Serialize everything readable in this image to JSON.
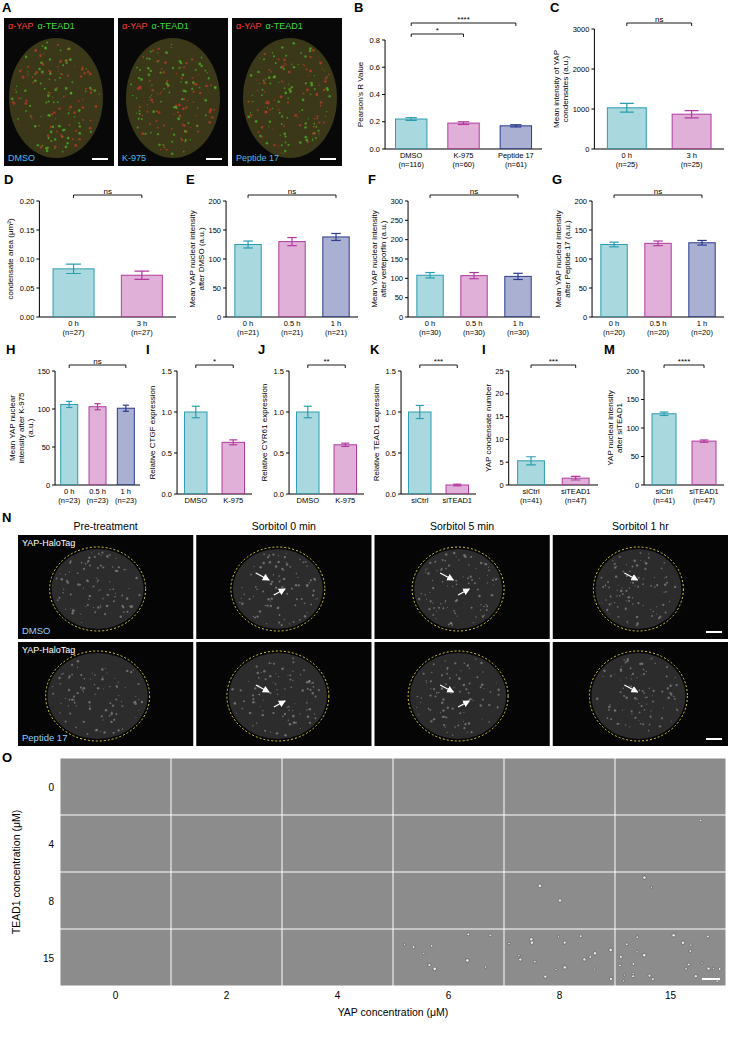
{
  "chart_data": [
    {
      "panel": "B",
      "type": "bar",
      "y_label": "Pearson's R Value",
      "categories": [
        "DMSO",
        "K-975",
        "Peptide 17"
      ],
      "n_labels": [
        "(n=116)",
        "(n=60)",
        "(n=61)"
      ],
      "values": [
        0.22,
        0.19,
        0.17
      ],
      "errors": [
        0.01,
        0.01,
        0.008
      ],
      "colors": [
        "#2a9db0",
        "#b23a9f",
        "#2b3a8f"
      ],
      "ylim": [
        0,
        0.8
      ],
      "yticks": [
        {
          "value": 0,
          "label": "0.0"
        },
        {
          "value": 0.2,
          "label": "0.2"
        },
        {
          "value": 0.4,
          "label": "0.4"
        },
        {
          "value": 0.6,
          "label": "0.6"
        },
        {
          "value": 0.8,
          "label": "0.8"
        }
      ],
      "comparisons": [
        {
          "from": 0,
          "to": 1,
          "label": "*"
        },
        {
          "from": 0,
          "to": 2,
          "label": "****"
        }
      ]
    },
    {
      "panel": "C",
      "type": "bar",
      "y_label": "Mean intensity of YAP condensates (a.u.)",
      "categories": [
        "0 h",
        "3 h"
      ],
      "n_labels": [
        "(n=25)",
        "(n=25)"
      ],
      "values": [
        1030,
        870
      ],
      "errors": [
        110,
        90
      ],
      "colors": [
        "#2a9db0",
        "#b23a9f"
      ],
      "ylim": [
        0,
        3000
      ],
      "yticks": [
        0,
        1000,
        2000,
        3000
      ],
      "comparisons": [
        {
          "from": 0,
          "to": 1,
          "label": "ns"
        }
      ]
    },
    {
      "panel": "D",
      "type": "bar",
      "y_label": "condensate area (μm²)",
      "categories": [
        "0 h",
        "3 h"
      ],
      "n_labels": [
        "(n=27)",
        "(n=27)"
      ],
      "values": [
        0.083,
        0.072
      ],
      "errors": [
        0.008,
        0.007
      ],
      "colors": [
        "#2a9db0",
        "#b23a9f"
      ],
      "ylim": [
        0,
        0.2
      ],
      "yticks": [
        {
          "value": 0,
          "label": "0.00"
        },
        {
          "value": 0.05,
          "label": "0.05"
        },
        {
          "value": 0.1,
          "label": "0.10"
        },
        {
          "value": 0.15,
          "label": "0.15"
        },
        {
          "value": 0.2,
          "label": "0.20"
        }
      ],
      "comparisons": [
        {
          "from": 0,
          "to": 1,
          "label": "ns"
        }
      ]
    },
    {
      "panel": "E",
      "type": "bar",
      "y_label": "Mean YAP nuclear intensity after DMSO (a.u.)",
      "categories": [
        "0 h",
        "0.5 h",
        "1 h"
      ],
      "n_labels": [
        "(n=21)",
        "(n=21)",
        "(n=21)"
      ],
      "values": [
        125,
        130,
        138
      ],
      "errors": [
        6,
        7,
        6
      ],
      "colors": [
        "#2a9db0",
        "#b23a9f",
        "#2b3a8f"
      ],
      "ylim": [
        0,
        200
      ],
      "yticks": [
        0,
        50,
        100,
        150,
        200
      ],
      "comparisons": [
        {
          "from": 0,
          "to": 2,
          "label": "ns"
        }
      ]
    },
    {
      "panel": "F",
      "type": "bar",
      "y_label": "Mean YAP nuclear intensity after verteporfin (a.u.)",
      "categories": [
        "0 h",
        "0.5 h",
        "1 h"
      ],
      "n_labels": [
        "(n=30)",
        "(n=30)",
        "(n=30)"
      ],
      "values": [
        108,
        107,
        105
      ],
      "errors": [
        7,
        8,
        8
      ],
      "colors": [
        "#2a9db0",
        "#b23a9f",
        "#2b3a8f"
      ],
      "ylim": [
        0,
        300
      ],
      "yticks": [
        0,
        50,
        100,
        150,
        200,
        250,
        300
      ],
      "comparisons": [
        {
          "from": 0,
          "to": 2,
          "label": "ns"
        }
      ]
    },
    {
      "panel": "G",
      "type": "bar",
      "y_label": "Mean YAP nuclear intensity after Peptide 17 (a.u.)",
      "categories": [
        "0 h",
        "0.5 h",
        "1 h"
      ],
      "n_labels": [
        "(n=20)",
        "(n=20)",
        "(n=20)"
      ],
      "values": [
        125,
        127,
        128
      ],
      "errors": [
        4,
        4,
        4
      ],
      "colors": [
        "#2a9db0",
        "#b23a9f",
        "#2b3a8f"
      ],
      "ylim": [
        0,
        200
      ],
      "yticks": [
        0,
        50,
        100,
        150,
        200
      ],
      "comparisons": [
        {
          "from": 0,
          "to": 2,
          "label": "ns"
        }
      ]
    },
    {
      "panel": "H",
      "type": "bar",
      "y_label": "Mean YAP nuclear intensity after K-975 (a.u.)",
      "categories": [
        "0 h",
        "0.5 h",
        "1 h"
      ],
      "n_labels": [
        "(n=23)",
        "(n=23)",
        "(n=23)"
      ],
      "values": [
        106,
        103,
        101
      ],
      "errors": [
        4,
        4,
        4
      ],
      "colors": [
        "#2a9db0",
        "#b23a9f",
        "#2b3a8f"
      ],
      "ylim": [
        0,
        150
      ],
      "yticks": [
        0,
        50,
        100,
        150
      ],
      "comparisons": [
        {
          "from": 0,
          "to": 2,
          "label": "ns"
        }
      ]
    },
    {
      "panel": "I",
      "type": "bar",
      "y_label": "Relative CTGF expression",
      "categories": [
        "DMSO",
        "K-975"
      ],
      "values": [
        1.0,
        0.63
      ],
      "errors": [
        0.07,
        0.03
      ],
      "colors": [
        "#2a9db0",
        "#b23a9f"
      ],
      "ylim": [
        0,
        1.5
      ],
      "yticks": [
        {
          "value": 0,
          "label": "0.0"
        },
        {
          "value": 0.5,
          "label": "0.5"
        },
        {
          "value": 1,
          "label": "1.0"
        },
        {
          "value": 1.5,
          "label": "1.5"
        }
      ],
      "comparisons": [
        {
          "from": 0,
          "to": 1,
          "label": "*"
        }
      ]
    },
    {
      "panel": "J",
      "type": "bar",
      "y_label": "Relative CYR61 expression",
      "categories": [
        "DMSO",
        "K-975"
      ],
      "values": [
        1.0,
        0.6
      ],
      "errors": [
        0.07,
        0.02
      ],
      "colors": [
        "#2a9db0",
        "#b23a9f"
      ],
      "ylim": [
        0,
        1.5
      ],
      "yticks": [
        {
          "value": 0,
          "label": "0.0"
        },
        {
          "value": 0.5,
          "label": "0.5"
        },
        {
          "value": 1,
          "label": "1.0"
        },
        {
          "value": 1.5,
          "label": "1.5"
        }
      ],
      "comparisons": [
        {
          "from": 0,
          "to": 1,
          "label": "**"
        }
      ]
    },
    {
      "panel": "K",
      "type": "bar",
      "y_label": "Relative TEAD1 expression",
      "categories": [
        "siCtrl",
        "siTEAD1"
      ],
      "values": [
        1.0,
        0.11
      ],
      "errors": [
        0.08,
        0.01
      ],
      "colors": [
        "#2a9db0",
        "#b23a9f"
      ],
      "ylim": [
        0,
        1.5
      ],
      "yticks": [
        {
          "value": 0,
          "label": "0.0"
        },
        {
          "value": 0.5,
          "label": "0.5"
        },
        {
          "value": 1,
          "label": "1.0"
        },
        {
          "value": 1.5,
          "label": "1.5"
        }
      ],
      "comparisons": [
        {
          "from": 0,
          "to": 1,
          "label": "***"
        }
      ]
    },
    {
      "panel": "I",
      "type": "bar",
      "y_label": "YAP condensate number",
      "categories": [
        "siCtrl",
        "siTEAD1"
      ],
      "n_labels": [
        "(n=41)",
        "(n=47)"
      ],
      "values": [
        5.3,
        1.5
      ],
      "errors": [
        0.9,
        0.4
      ],
      "colors": [
        "#2a9db0",
        "#b23a9f"
      ],
      "ylim": [
        0,
        25
      ],
      "yticks": [
        0,
        5,
        10,
        15,
        20,
        25
      ],
      "comparisons": [
        {
          "from": 0,
          "to": 1,
          "label": "***"
        }
      ]
    },
    {
      "panel": "M",
      "type": "bar",
      "y_label": "YAP nuclear intensity after siTEAD1",
      "categories": [
        "siCtrl",
        "siTEAD1"
      ],
      "n_labels": [
        "(n=41)",
        "(n=47)"
      ],
      "values": [
        125,
        77
      ],
      "errors": [
        3,
        2
      ],
      "colors": [
        "#2a9db0",
        "#b23a9f"
      ],
      "ylim": [
        0,
        200
      ],
      "yticks": [
        0,
        50,
        100,
        150,
        200
      ],
      "comparisons": [
        {
          "from": 0,
          "to": 1,
          "label": "****"
        }
      ]
    }
  ],
  "panel_a": {
    "panel": "A",
    "stains": [
      "α-YAP",
      "α-TEAD1"
    ],
    "stain_colors": [
      "#ff3b3b",
      "#3bdc3b"
    ],
    "conditions": [
      "DMSO",
      "K-975",
      "Peptide 17"
    ]
  },
  "panel_n": {
    "panel": "N",
    "label": "YAP-HaloTag",
    "columns": [
      "Pre-treatment",
      "Sorbitol 0 min",
      "Sorbitol 5 min",
      "Sorbitol 1 hr"
    ],
    "rows": [
      "DMSO",
      "Peptide 17"
    ]
  },
  "panel_o": {
    "panel": "O",
    "row_title": "TEAD1 concentration (μM)",
    "rows": [
      0,
      4,
      8,
      15
    ],
    "column_title": "YAP concentration (μM)",
    "columns": [
      0,
      2,
      4,
      6,
      8,
      15
    ]
  }
}
